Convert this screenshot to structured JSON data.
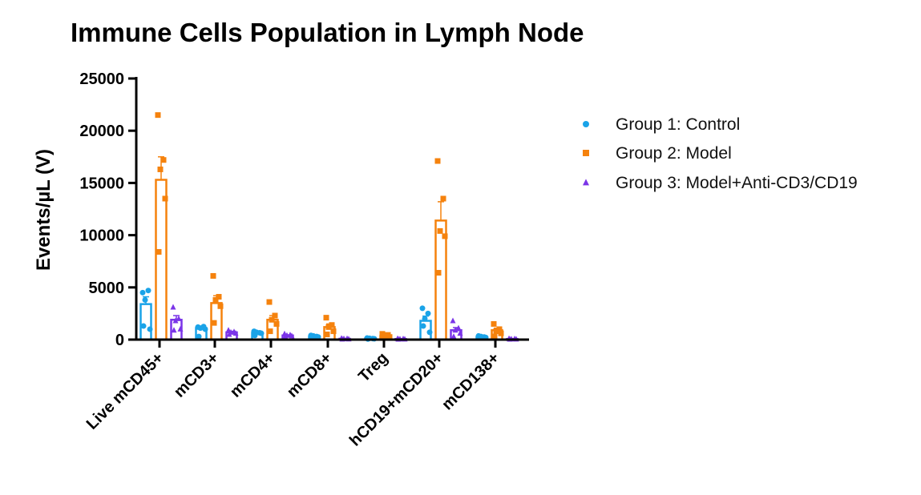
{
  "chart_data": {
    "type": "bar",
    "title": "Immune Cells Population in Lymph Node",
    "xlabel": "",
    "ylabel": "Events/µL (V)",
    "ylim": [
      0,
      25000
    ],
    "yticks": [
      0,
      5000,
      10000,
      15000,
      20000,
      25000
    ],
    "ytick_labels": [
      "0",
      "5000",
      "10000",
      "15000",
      "20000",
      "25000"
    ],
    "categories": [
      "Live mCD45+",
      "mCD3+",
      "mCD4+",
      "mCD8+",
      "Treg",
      "hCD19+mCD20+",
      "mCD138+"
    ],
    "grid": false,
    "legend_position": "right",
    "series": [
      {
        "name": "Group 1: Control",
        "color": "#1aa3e8",
        "marker": "circle",
        "values": [
          3400,
          1100,
          650,
          300,
          100,
          1800,
          250
        ],
        "errors": [
          700,
          150,
          60,
          60,
          30,
          450,
          60
        ],
        "points": [
          [
            4500,
            4700,
            3800,
            1000,
            1300
          ],
          [
            1200,
            1250,
            1100,
            1000,
            300
          ],
          [
            800,
            650,
            700,
            600,
            400
          ],
          [
            400,
            300,
            350,
            250,
            200
          ],
          [
            150,
            100,
            120,
            80,
            60
          ],
          [
            3000,
            2500,
            2000,
            700,
            1300
          ],
          [
            350,
            250,
            300,
            200,
            150
          ]
        ]
      },
      {
        "name": "Group 2: Model",
        "color": "#f5820d",
        "marker": "square",
        "values": [
          15300,
          3500,
          1900,
          1200,
          350,
          11400,
          900
        ],
        "errors": [
          2200,
          700,
          400,
          300,
          80,
          1800,
          200
        ],
        "points": [
          [
            21500,
            17200,
            16300,
            13500,
            8400
          ],
          [
            6100,
            4100,
            3800,
            3200,
            1600
          ],
          [
            3600,
            2300,
            1900,
            1500,
            800
          ],
          [
            2100,
            1400,
            1200,
            800,
            500
          ],
          [
            550,
            450,
            350,
            250,
            150
          ],
          [
            17100,
            13500,
            10400,
            9900,
            6400
          ],
          [
            1500,
            1000,
            800,
            600,
            300
          ]
        ]
      },
      {
        "name": "Group 3: Model+Anti-CD3/CD19",
        "color": "#7b35e8",
        "marker": "triangle",
        "values": [
          1900,
          700,
          400,
          80,
          60,
          900,
          60
        ],
        "errors": [
          400,
          100,
          60,
          20,
          15,
          250,
          15
        ],
        "points": [
          [
            3100,
            2000,
            1800,
            1000,
            900
          ],
          [
            900,
            750,
            700,
            600,
            500
          ],
          [
            550,
            450,
            400,
            350,
            300
          ],
          [
            120,
            90,
            80,
            60,
            50
          ],
          [
            90,
            70,
            60,
            50,
            40
          ],
          [
            1800,
            1100,
            900,
            600,
            300
          ],
          [
            90,
            70,
            60,
            50,
            40
          ]
        ]
      }
    ]
  }
}
